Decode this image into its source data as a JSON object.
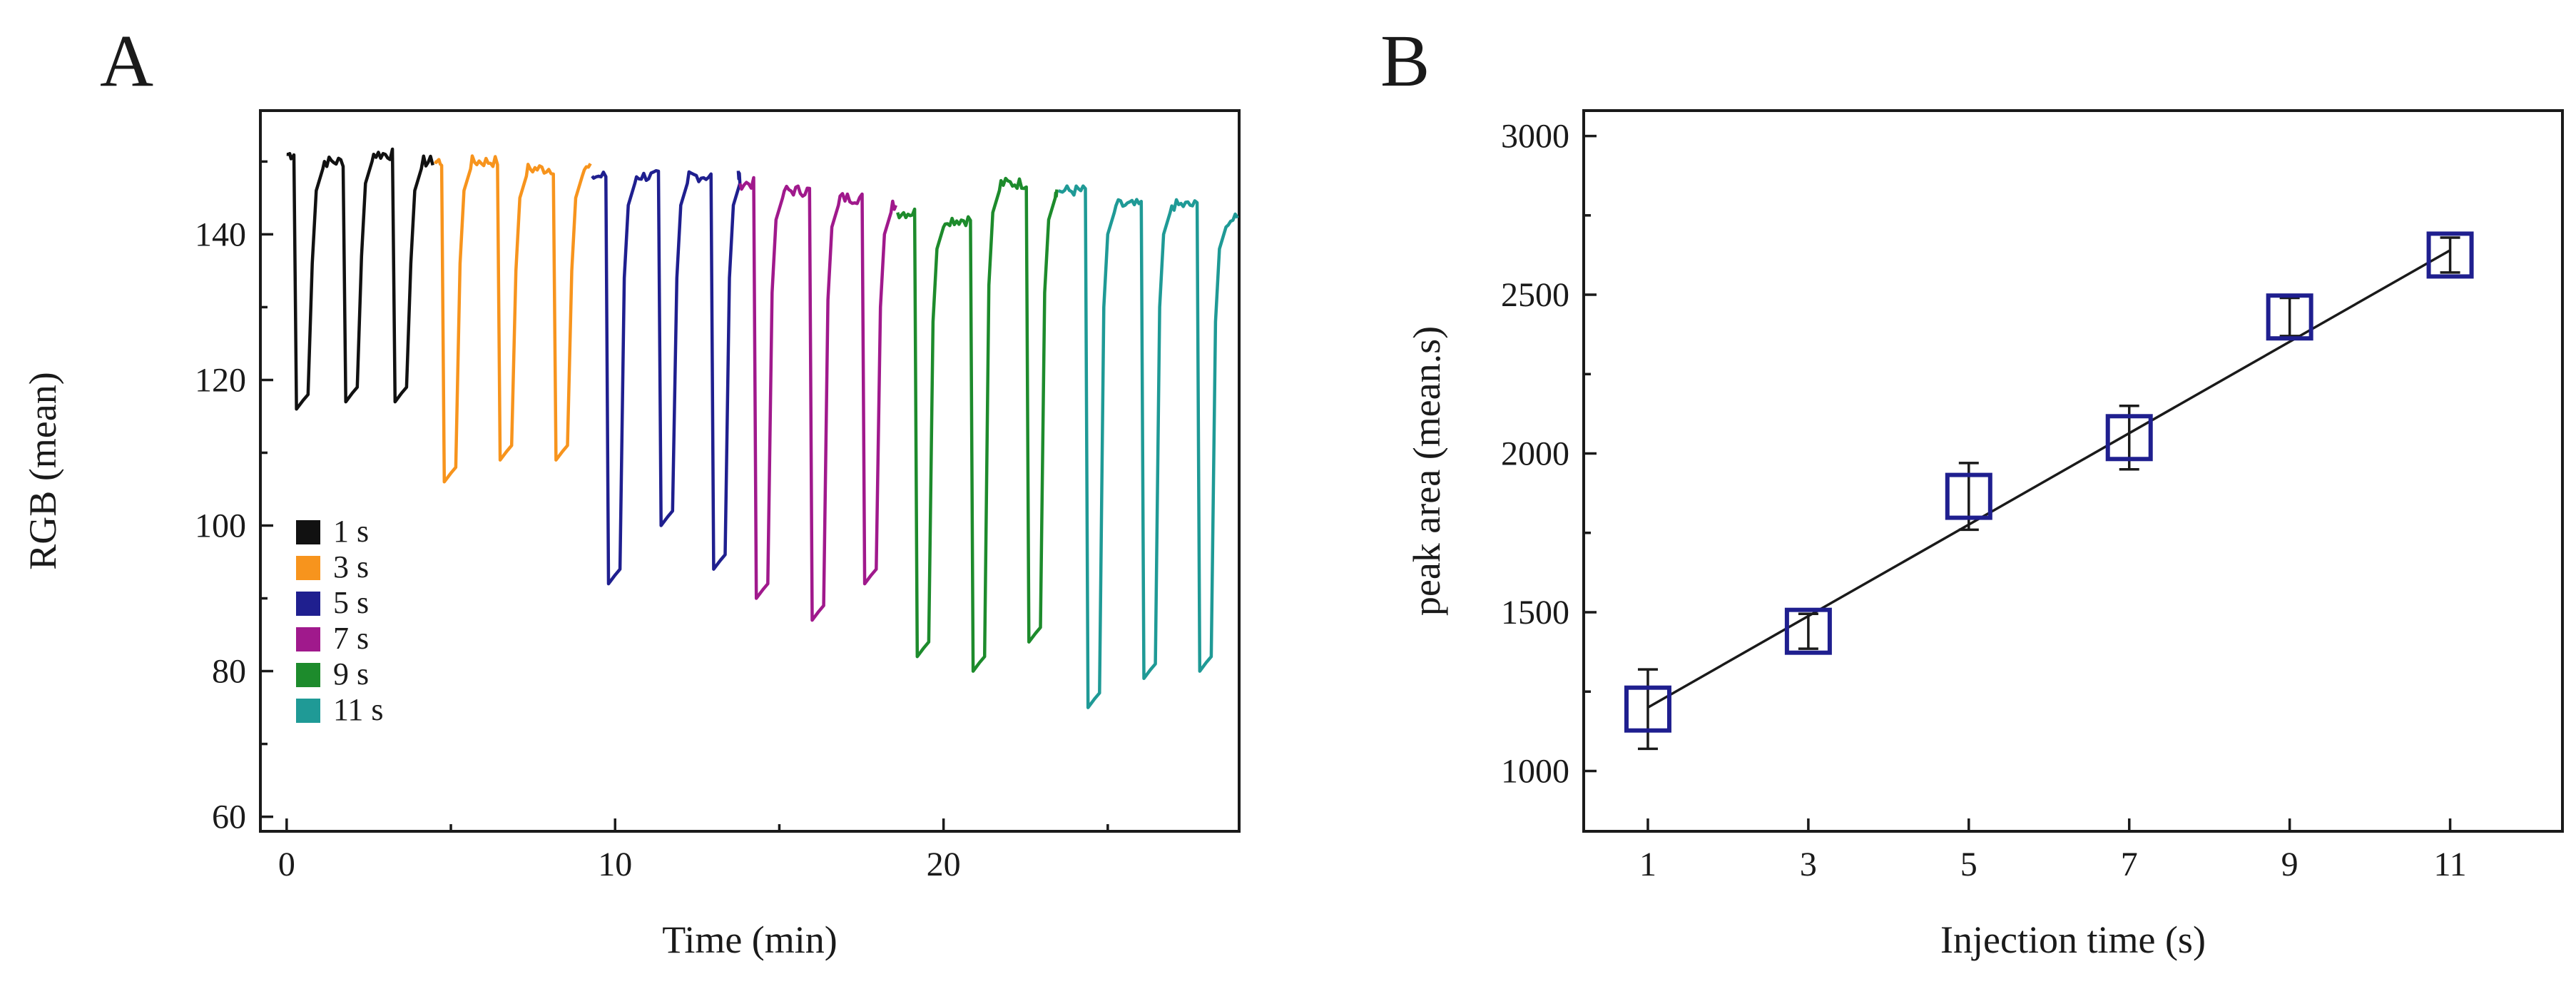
{
  "chart_data": [
    {
      "panel": "A",
      "type": "line",
      "title": "",
      "xlabel": "Time (min)",
      "ylabel": "RGB (mean)",
      "xlim": [
        -0.8,
        29
      ],
      "ylim": [
        58,
        157
      ],
      "x_ticks": [
        0,
        10,
        20
      ],
      "y_ticks": [
        60,
        80,
        100,
        120,
        140
      ],
      "legend_position": "bottom-left",
      "series": [
        {
          "name": "1 s",
          "color": "#111111",
          "baseline": [
            151,
            150,
            151,
            150
          ],
          "minima": [
            116,
            117,
            117
          ],
          "min_times": [
            0.3,
            1.8,
            3.3
          ],
          "start": 0.0,
          "end": 4.5
        },
        {
          "name": "3 s",
          "color": "#f7941d",
          "baseline": [
            150,
            150,
            149,
            149
          ],
          "minima": [
            106,
            109,
            109
          ],
          "min_times": [
            4.8,
            6.5,
            8.2
          ],
          "start": 4.5,
          "end": 9.3
        },
        {
          "name": "5 s",
          "color": "#1f1f8f",
          "baseline": [
            148,
            148,
            148,
            148
          ],
          "minima": [
            92,
            100,
            94
          ],
          "min_times": [
            9.8,
            11.4,
            13.0
          ],
          "start": 9.3,
          "end": 13.8
        },
        {
          "name": "7 s",
          "color": "#a0198c",
          "baseline": [
            147,
            146,
            145,
            144
          ],
          "minima": [
            90,
            87,
            92
          ],
          "min_times": [
            14.3,
            16.0,
            17.6
          ],
          "start": 13.8,
          "end": 18.6
        },
        {
          "name": "9 s",
          "color": "#1d8b2c",
          "baseline": [
            143,
            142,
            147,
            146
          ],
          "minima": [
            82,
            80,
            84
          ],
          "min_times": [
            19.2,
            20.9,
            22.6
          ],
          "start": 18.6,
          "end": 23.5
        },
        {
          "name": "11 s",
          "color": "#1f9a96",
          "baseline": [
            146,
            144,
            144,
            142
          ],
          "minima": [
            75,
            79,
            80
          ],
          "min_times": [
            24.4,
            26.1,
            27.8
          ],
          "start": 23.5,
          "end": 29.0
        }
      ]
    },
    {
      "panel": "B",
      "type": "scatter",
      "title": "",
      "xlabel": "Injection time (s)",
      "ylabel": "peak area (mean.s)",
      "xlim": [
        0.2,
        12.4
      ],
      "ylim": [
        810,
        3080
      ],
      "x_ticks": [
        1,
        3,
        5,
        7,
        9,
        11
      ],
      "y_ticks": [
        1000,
        1500,
        2000,
        2500,
        3000
      ],
      "marker": "open-square",
      "marker_color": "#1f1f8f",
      "x": [
        1,
        3,
        5,
        7,
        9,
        11
      ],
      "y": [
        1195,
        1440,
        1865,
        2050,
        2430,
        2625
      ],
      "error": [
        125,
        55,
        105,
        100,
        60,
        55
      ],
      "fit_line": {
        "x": [
          1,
          11
        ],
        "y": [
          1200,
          2640
        ]
      }
    }
  ],
  "panels": {
    "a_letter": "A",
    "b_letter": "B"
  }
}
